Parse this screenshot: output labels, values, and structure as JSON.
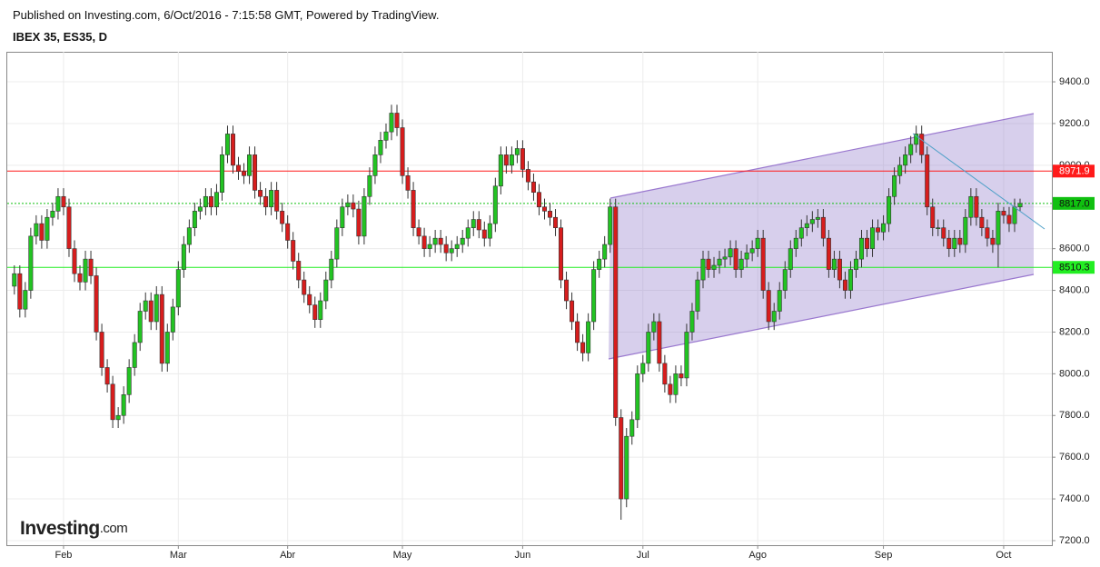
{
  "header": {
    "published": "Published on Investing.com, 6/Oct/2016 - 7:15:58 GMT, Powered by TradingView.",
    "logo_main": "Investing",
    "logo_suffix": ".com"
  },
  "chart_data": {
    "type": "candlestick",
    "title": "IBEX 35, ES35, D",
    "up_color": "#22c322",
    "down_color": "#d71d1d",
    "categories": [
      null,
      null,
      null,
      null,
      null,
      null,
      null,
      null,
      null,
      "Feb",
      null,
      null,
      null,
      null,
      null,
      null,
      null,
      null,
      null,
      null,
      null,
      null,
      null,
      null,
      null,
      null,
      null,
      null,
      null,
      null,
      "Mar",
      null,
      null,
      null,
      null,
      null,
      null,
      null,
      null,
      null,
      null,
      null,
      null,
      null,
      null,
      null,
      null,
      null,
      null,
      null,
      "Abr",
      null,
      null,
      null,
      null,
      null,
      null,
      null,
      null,
      null,
      null,
      null,
      null,
      null,
      null,
      null,
      null,
      null,
      null,
      null,
      null,
      "May",
      null,
      null,
      null,
      null,
      null,
      null,
      null,
      null,
      null,
      null,
      null,
      null,
      null,
      null,
      null,
      null,
      null,
      null,
      null,
      null,
      null,
      "Jun",
      null,
      null,
      null,
      null,
      null,
      null,
      null,
      null,
      null,
      null,
      null,
      null,
      null,
      null,
      null,
      null,
      null,
      null,
      null,
      null,
      null,
      "Jul",
      null,
      null,
      null,
      null,
      null,
      null,
      null,
      null,
      null,
      null,
      null,
      null,
      null,
      null,
      null,
      null,
      null,
      null,
      null,
      null,
      "Ago",
      null,
      null,
      null,
      null,
      null,
      null,
      null,
      null,
      null,
      null,
      null,
      null,
      null,
      null,
      null,
      null,
      null,
      null,
      null,
      null,
      null,
      null,
      "Sep",
      null,
      null,
      null,
      null,
      null,
      null,
      null,
      null,
      null,
      null,
      null,
      null,
      null,
      null,
      null,
      null,
      null,
      null,
      null,
      null,
      null,
      "Oct",
      null,
      null,
      null
    ],
    "open": [
      8420,
      8480,
      8310,
      8400,
      8660,
      8720,
      8640,
      8750,
      8780,
      8850,
      8800,
      8600,
      8480,
      8440,
      8550,
      8470,
      8200,
      8030,
      7950,
      7780,
      7800,
      7900,
      8030,
      8150,
      8300,
      8350,
      8250,
      8380,
      8050,
      8200,
      8320,
      8500,
      8620,
      8700,
      8780,
      8800,
      8850,
      8800,
      8870,
      9050,
      9150,
      9000,
      8970,
      8950,
      9050,
      8880,
      8850,
      8800,
      8880,
      8780,
      8720,
      8640,
      8540,
      8450,
      8380,
      8330,
      8260,
      8350,
      8450,
      8550,
      8700,
      8800,
      8820,
      8790,
      8660,
      8850,
      8950,
      9050,
      9120,
      9160,
      9250,
      9180,
      8950,
      8880,
      8700,
      8660,
      8600,
      8620,
      8650,
      8620,
      8580,
      8600,
      8620,
      8650,
      8700,
      8740,
      8690,
      8650,
      8720,
      8900,
      9050,
      9000,
      9050,
      9080,
      8980,
      8920,
      8870,
      8800,
      8780,
      8750,
      8700,
      8450,
      8350,
      8250,
      8150,
      8100,
      8250,
      8500,
      8550,
      8620,
      8800,
      7790,
      7400,
      7700,
      7780,
      8000,
      8050,
      8200,
      8250,
      8050,
      7950,
      7900,
      8000,
      7980,
      8200,
      8300,
      8450,
      8550,
      8500,
      8520,
      8550,
      8560,
      8600,
      8500,
      8550,
      8580,
      8600,
      8650,
      8400,
      8250,
      8300,
      8400,
      8500,
      8600,
      8650,
      8700,
      8720,
      8740,
      8750,
      8650,
      8500,
      8550,
      8450,
      8400,
      8500,
      8550,
      8650,
      8600,
      8700,
      8680,
      8720,
      8850,
      8950,
      9000,
      9050,
      9100,
      9150,
      9050,
      8800,
      8700,
      8700,
      8650,
      8600,
      8650,
      8620,
      8750,
      8850,
      8750,
      8700,
      8650,
      8620,
      8780,
      8760,
      8720,
      8800
    ],
    "high": [
      8520,
      8520,
      8440,
      8700,
      8760,
      8760,
      8790,
      8820,
      8890,
      8890,
      8840,
      8640,
      8520,
      8590,
      8590,
      8510,
      8240,
      8070,
      7990,
      7840,
      7940,
      8070,
      8190,
      8340,
      8390,
      8390,
      8420,
      8420,
      8240,
      8360,
      8540,
      8660,
      8740,
      8820,
      8840,
      8890,
      8890,
      8910,
      9090,
      9190,
      9190,
      9040,
      9010,
      9090,
      9090,
      8920,
      8890,
      8920,
      8920,
      8820,
      8760,
      8680,
      8580,
      8490,
      8420,
      8370,
      8390,
      8490,
      8590,
      8740,
      8840,
      8860,
      8860,
      8830,
      8890,
      8990,
      9090,
      9160,
      9200,
      9290,
      9290,
      9220,
      8990,
      8920,
      8740,
      8700,
      8660,
      8690,
      8690,
      8660,
      8640,
      8660,
      8690,
      8740,
      8780,
      8780,
      8730,
      8760,
      8940,
      9090,
      9090,
      9090,
      9120,
      9120,
      9020,
      8960,
      8910,
      8840,
      8820,
      8790,
      8740,
      8490,
      8390,
      8290,
      8190,
      8290,
      8540,
      8590,
      8660,
      8840,
      8840,
      7830,
      7740,
      7820,
      8040,
      8090,
      8240,
      8290,
      8290,
      8090,
      7990,
      8040,
      8040,
      8240,
      8340,
      8490,
      8590,
      8590,
      8560,
      8590,
      8600,
      8640,
      8640,
      8590,
      8620,
      8640,
      8690,
      8690,
      8440,
      8340,
      8440,
      8540,
      8640,
      8690,
      8740,
      8760,
      8780,
      8790,
      8790,
      8690,
      8590,
      8590,
      8490,
      8540,
      8590,
      8690,
      8690,
      8740,
      8740,
      8760,
      8890,
      8990,
      9040,
      9090,
      9140,
      9190,
      9190,
      9090,
      8840,
      8740,
      8740,
      8690,
      8690,
      8690,
      8790,
      8890,
      8890,
      8790,
      8740,
      8690,
      8820,
      8800,
      8800,
      8840,
      8840
    ],
    "low": [
      8380,
      8270,
      8270,
      8360,
      8620,
      8600,
      8600,
      8710,
      8740,
      8760,
      8560,
      8440,
      8400,
      8400,
      8430,
      8160,
      7990,
      7910,
      7740,
      7740,
      7760,
      7860,
      7990,
      8110,
      8260,
      8210,
      8210,
      8010,
      8010,
      8160,
      8280,
      8460,
      8580,
      8660,
      8740,
      8760,
      8760,
      8760,
      8830,
      9010,
      8960,
      8930,
      8910,
      8910,
      8840,
      8810,
      8760,
      8760,
      8740,
      8680,
      8600,
      8500,
      8410,
      8340,
      8290,
      8220,
      8220,
      8310,
      8410,
      8510,
      8660,
      8760,
      8750,
      8620,
      8620,
      8810,
      8910,
      9010,
      9080,
      9120,
      9140,
      8910,
      8840,
      8660,
      8620,
      8560,
      8560,
      8580,
      8580,
      8540,
      8540,
      8560,
      8580,
      8610,
      8660,
      8650,
      8610,
      8610,
      8680,
      8860,
      8960,
      8960,
      9010,
      8940,
      8880,
      8830,
      8760,
      8740,
      8710,
      8660,
      8410,
      8310,
      8210,
      8110,
      8060,
      8060,
      8210,
      8460,
      8510,
      8580,
      7750,
      7300,
      7360,
      7660,
      7740,
      7960,
      8010,
      8160,
      8010,
      7910,
      7860,
      7860,
      7940,
      7940,
      8160,
      8260,
      8410,
      8460,
      8460,
      8480,
      8510,
      8520,
      8460,
      8460,
      8510,
      8540,
      8560,
      8360,
      8210,
      8210,
      8260,
      8360,
      8460,
      8560,
      8610,
      8660,
      8680,
      8700,
      8610,
      8460,
      8460,
      8410,
      8360,
      8360,
      8460,
      8510,
      8560,
      8560,
      8640,
      8640,
      8680,
      8810,
      8910,
      8960,
      9010,
      9060,
      9010,
      8760,
      8660,
      8660,
      8610,
      8560,
      8560,
      8580,
      8580,
      8710,
      8710,
      8660,
      8610,
      8580,
      8510,
      8720,
      8680,
      8680,
      8780
    ],
    "close": [
      8480,
      8310,
      8400,
      8660,
      8720,
      8640,
      8750,
      8780,
      8850,
      8800,
      8600,
      8480,
      8440,
      8550,
      8470,
      8200,
      8030,
      7950,
      7780,
      7800,
      7900,
      8030,
      8150,
      8300,
      8350,
      8250,
      8380,
      8050,
      8200,
      8320,
      8500,
      8620,
      8700,
      8780,
      8800,
      8850,
      8800,
      8870,
      9050,
      9150,
      9000,
      8970,
      8950,
      9050,
      8880,
      8850,
      8800,
      8880,
      8780,
      8720,
      8640,
      8540,
      8450,
      8380,
      8330,
      8260,
      8350,
      8450,
      8550,
      8700,
      8800,
      8820,
      8790,
      8660,
      8850,
      8950,
      9050,
      9120,
      9160,
      9250,
      9180,
      8950,
      8880,
      8700,
      8660,
      8600,
      8620,
      8650,
      8620,
      8580,
      8600,
      8620,
      8650,
      8700,
      8740,
      8690,
      8650,
      8720,
      8900,
      9050,
      9000,
      9050,
      9080,
      8980,
      8920,
      8870,
      8800,
      8780,
      8750,
      8700,
      8450,
      8350,
      8250,
      8150,
      8100,
      8250,
      8500,
      8550,
      8620,
      8800,
      7790,
      7400,
      7700,
      7780,
      8000,
      8050,
      8200,
      8250,
      8050,
      7950,
      7900,
      8000,
      7980,
      8200,
      8300,
      8450,
      8550,
      8500,
      8520,
      8550,
      8560,
      8600,
      8500,
      8550,
      8580,
      8600,
      8650,
      8400,
      8250,
      8300,
      8400,
      8500,
      8600,
      8650,
      8700,
      8720,
      8740,
      8750,
      8650,
      8500,
      8550,
      8450,
      8400,
      8500,
      8550,
      8650,
      8600,
      8700,
      8680,
      8720,
      8850,
      8950,
      9000,
      9050,
      9100,
      9150,
      9050,
      8800,
      8700,
      8700,
      8650,
      8600,
      8650,
      8620,
      8750,
      8850,
      8750,
      8700,
      8650,
      8620,
      8780,
      8760,
      8720,
      8800,
      8817
    ],
    "ylim": [
      7178,
      9544
    ],
    "yticks": [
      {
        "value": 7200,
        "label": "7200.0"
      },
      {
        "value": 7400,
        "label": "7400.0"
      },
      {
        "value": 7600,
        "label": "7600.0"
      },
      {
        "value": 7800,
        "label": "7800.0"
      },
      {
        "value": 8000,
        "label": "8000.0"
      },
      {
        "value": 8200,
        "label": "8200.0"
      },
      {
        "value": 8400,
        "label": "8400.0"
      },
      {
        "value": 8600,
        "label": "8600.0"
      },
      {
        "value": 8800,
        "label": "8800.0"
      },
      {
        "value": 9000,
        "label": "9000.0"
      },
      {
        "value": 9200,
        "label": "9200.0"
      },
      {
        "value": 9400,
        "label": "9400.0"
      }
    ],
    "grid": true,
    "levels": [
      {
        "value": 8971.9,
        "color": "#ff1a1a"
      },
      {
        "value": 8817,
        "label": "8817.0",
        "color": "#10c010"
      },
      {
        "value": 8510.3,
        "color": "#22ee22"
      }
    ]
  }
}
